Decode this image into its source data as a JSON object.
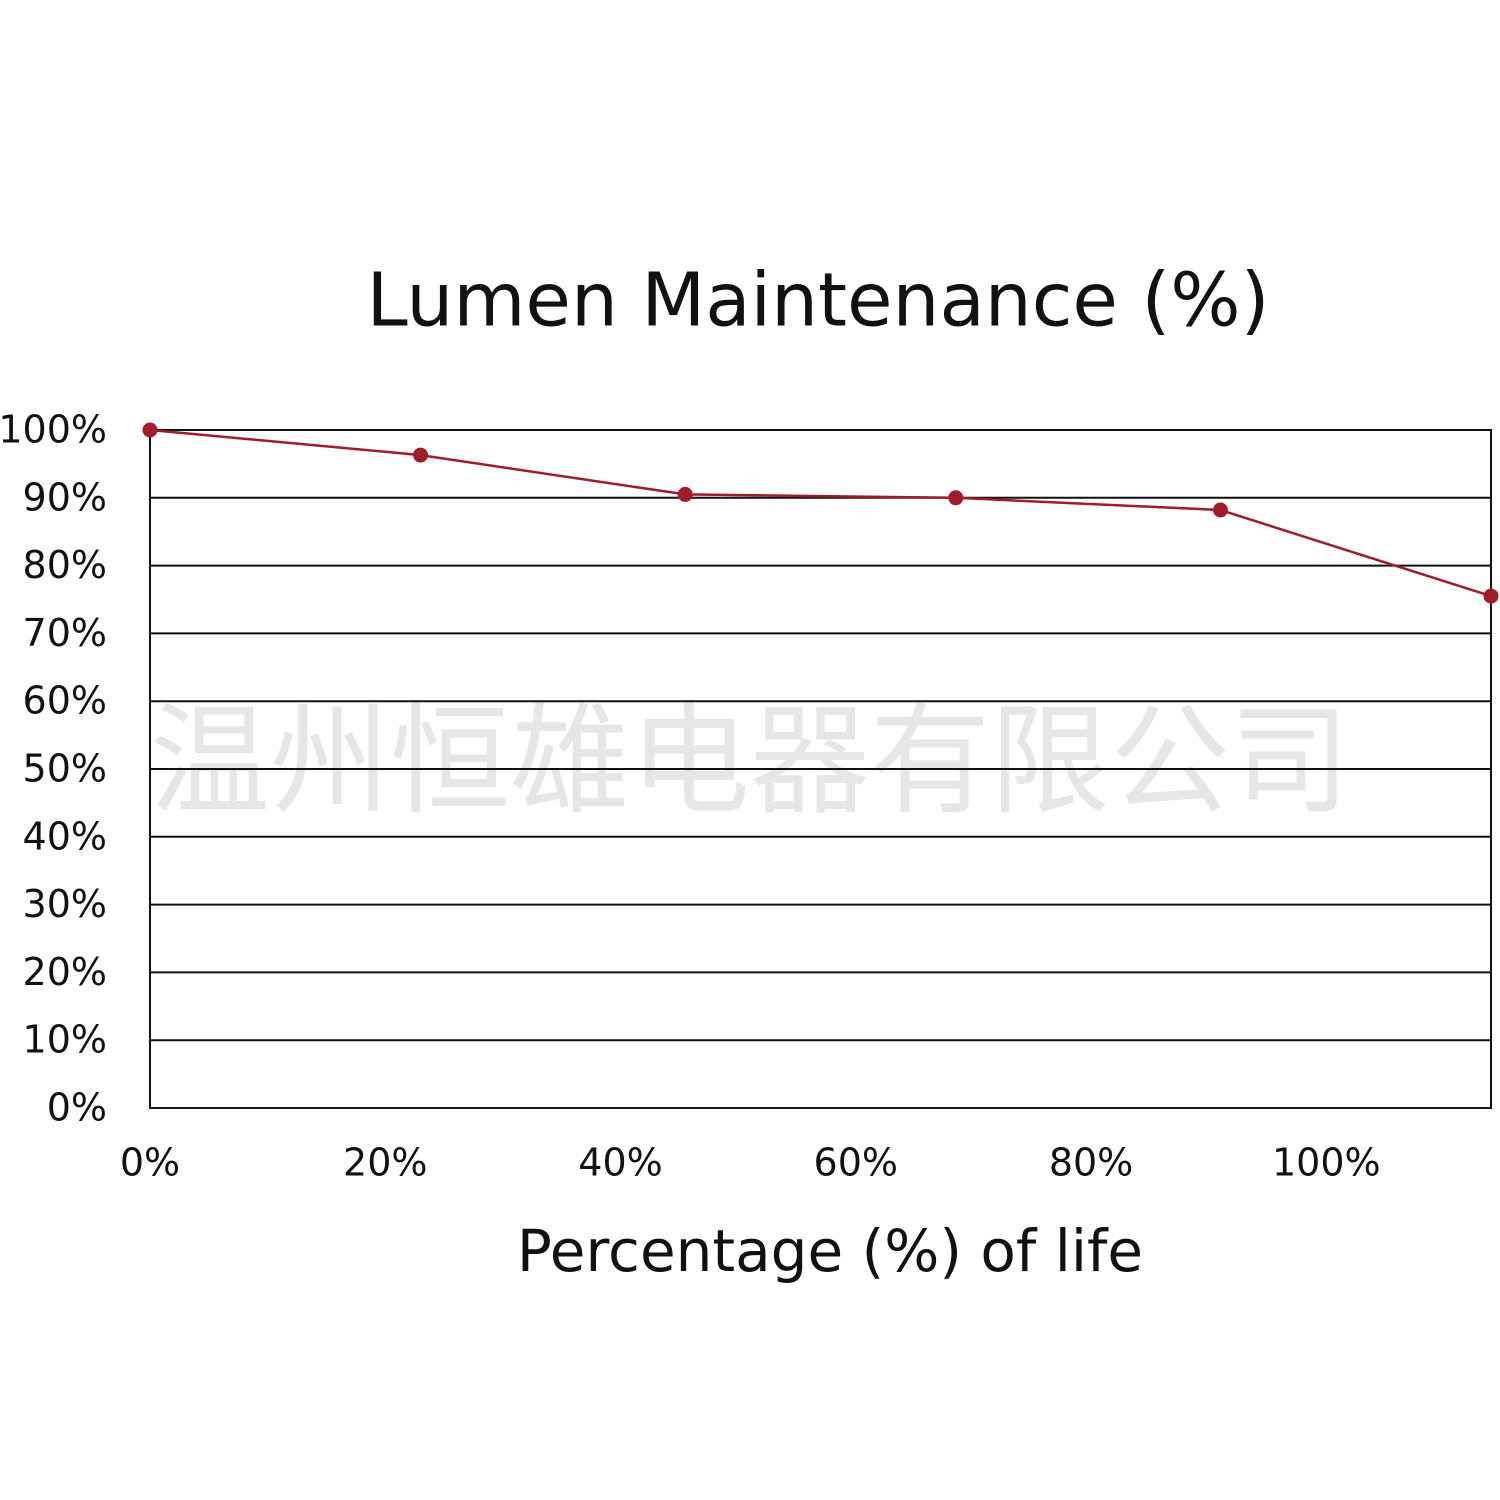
{
  "chart_data": {
    "type": "line",
    "title": "Lumen Maintenance (%)",
    "x_label": "Percentage (%) of life",
    "watermark": "温州恒雄电器有限公司",
    "x": [
      0,
      23,
      45.5,
      68.5,
      91,
      114
    ],
    "series": [
      {
        "name": "Lumen maintenance",
        "color": "#a01c28",
        "values": [
          100,
          96.3,
          90.5,
          90,
          88.2,
          75.5
        ]
      }
    ],
    "xlim": [
      0,
      114
    ],
    "xticks": [
      {
        "value": 0,
        "label": "0%"
      },
      {
        "value": 20,
        "label": "20%"
      },
      {
        "value": 40,
        "label": "40%"
      },
      {
        "value": 60,
        "label": "60%"
      },
      {
        "value": 80,
        "label": "80%"
      },
      {
        "value": 100,
        "label": "100%"
      }
    ],
    "ylim": [
      0,
      100
    ],
    "yticks": [
      {
        "value": 0,
        "label": "0%"
      },
      {
        "value": 10,
        "label": "10%"
      },
      {
        "value": 20,
        "label": "20%"
      },
      {
        "value": 30,
        "label": "30%"
      },
      {
        "value": 40,
        "label": "40%"
      },
      {
        "value": 50,
        "label": "50%"
      },
      {
        "value": 60,
        "label": "60%"
      },
      {
        "value": 70,
        "label": "70%"
      },
      {
        "value": 80,
        "label": "80%"
      },
      {
        "value": 90,
        "label": "90%"
      },
      {
        "value": 100,
        "label": "100%"
      }
    ],
    "grid": true
  }
}
